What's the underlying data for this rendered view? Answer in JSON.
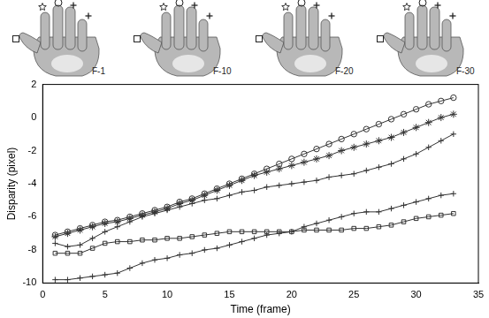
{
  "chart_data": {
    "type": "line",
    "x_label": "Time (frame)",
    "y_label": "Disparity (pixel)",
    "x": [
      1,
      2,
      3,
      4,
      5,
      6,
      7,
      8,
      9,
      10,
      11,
      12,
      13,
      14,
      15,
      16,
      17,
      18,
      19,
      20,
      21,
      22,
      23,
      24,
      25,
      26,
      27,
      28,
      29,
      30,
      31,
      32,
      33
    ],
    "series": [
      {
        "color": "#333333",
        "marker": "circle",
        "values": [
          -7.1,
          -6.9,
          -6.7,
          -6.5,
          -6.3,
          -6.2,
          -6.0,
          -5.8,
          -5.6,
          -5.4,
          -5.1,
          -4.9,
          -4.6,
          -4.3,
          -4.0,
          -3.7,
          -3.4,
          -3.1,
          -2.8,
          -2.5,
          -2.2,
          -1.9,
          -1.6,
          -1.3,
          -1.0,
          -0.7,
          -0.4,
          -0.1,
          0.2,
          0.5,
          0.8,
          1.0,
          1.2
        ]
      },
      {
        "color": "#333333",
        "marker": "star",
        "values": [
          -7.2,
          -7.0,
          -6.8,
          -6.6,
          -6.4,
          -6.3,
          -6.1,
          -5.9,
          -5.7,
          -5.5,
          -5.2,
          -5.0,
          -4.7,
          -4.4,
          -4.1,
          -3.8,
          -3.5,
          -3.3,
          -3.1,
          -2.9,
          -2.7,
          -2.5,
          -2.3,
          -2.0,
          -1.8,
          -1.6,
          -1.4,
          -1.2,
          -0.9,
          -0.6,
          -0.3,
          0.0,
          0.2
        ]
      },
      {
        "color": "#333333",
        "marker": "cross",
        "values": [
          -7.6,
          -7.8,
          -7.7,
          -7.3,
          -6.9,
          -6.6,
          -6.3,
          -6.0,
          -5.8,
          -5.6,
          -5.4,
          -5.2,
          -5.0,
          -4.9,
          -4.7,
          -4.5,
          -4.4,
          -4.2,
          -4.1,
          -4.0,
          -3.9,
          -3.8,
          -3.6,
          -3.5,
          -3.4,
          -3.2,
          -3.0,
          -2.8,
          -2.5,
          -2.2,
          -1.8,
          -1.4,
          -1.0
        ]
      },
      {
        "color": "#333333",
        "marker": "square",
        "values": [
          -8.2,
          -8.2,
          -8.2,
          -7.9,
          -7.6,
          -7.5,
          -7.5,
          -7.4,
          -7.4,
          -7.3,
          -7.3,
          -7.2,
          -7.1,
          -7.0,
          -6.9,
          -6.9,
          -6.9,
          -6.9,
          -6.9,
          -6.9,
          -6.8,
          -6.8,
          -6.8,
          -6.8,
          -6.7,
          -6.7,
          -6.6,
          -6.5,
          -6.3,
          -6.1,
          -6.0,
          -5.9,
          -5.8
        ]
      },
      {
        "color": "#333333",
        "marker": "cross",
        "values": [
          -9.8,
          -9.8,
          -9.7,
          -9.6,
          -9.5,
          -9.4,
          -9.1,
          -8.8,
          -8.6,
          -8.5,
          -8.3,
          -8.2,
          -8.0,
          -7.9,
          -7.7,
          -7.5,
          -7.3,
          -7.1,
          -7.0,
          -6.9,
          -6.6,
          -6.4,
          -6.2,
          -6.0,
          -5.8,
          -5.7,
          -5.7,
          -5.5,
          -5.3,
          -5.1,
          -4.9,
          -4.7,
          -4.6
        ]
      }
    ],
    "xlim": [
      0,
      35
    ],
    "xticks": [
      0,
      5,
      10,
      15,
      20,
      25,
      30,
      35
    ],
    "ylim": [
      -10,
      2
    ],
    "yticks": [
      -10,
      -8,
      -6,
      -4,
      -2,
      0,
      2
    ],
    "grid": false
  },
  "images": [
    {
      "label": "F-1"
    },
    {
      "label": "F-10"
    },
    {
      "label": "F-20"
    },
    {
      "label": "F-30"
    }
  ]
}
